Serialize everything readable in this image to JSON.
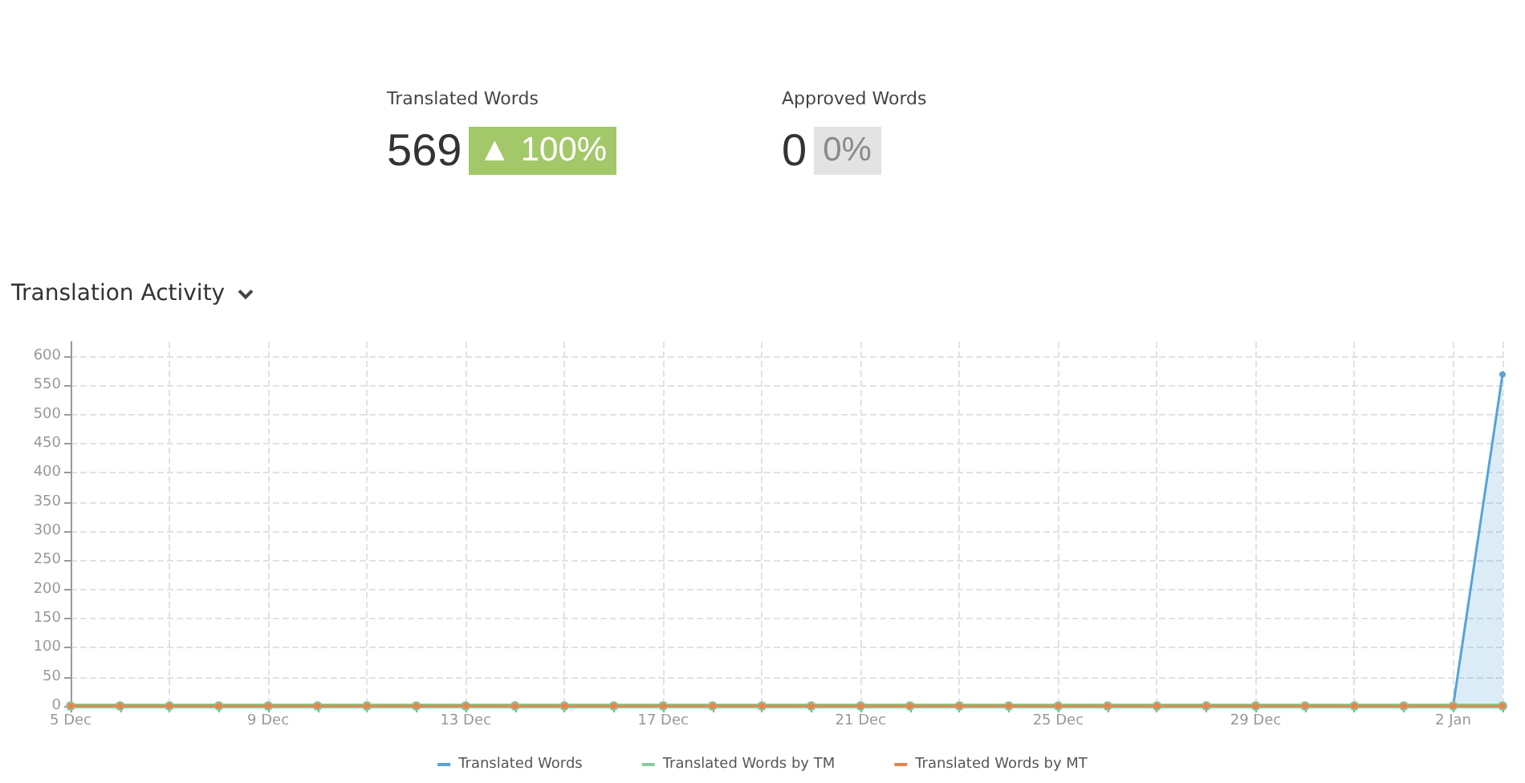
{
  "chart_data": [
    {
      "type": "other",
      "title": "Translated Words",
      "annotations": [
        "569",
        "▲ 100%"
      ],
      "color": "#a3c86a"
    },
    {
      "type": "other",
      "title": "Approved Words",
      "annotations": [
        "0",
        "0%"
      ],
      "color": "#e3e3e3"
    },
    {
      "type": "area",
      "title": "Translation Activity",
      "categories": [
        "5 Dec",
        null,
        null,
        null,
        "9 Dec",
        null,
        null,
        null,
        "13 Dec",
        null,
        null,
        null,
        "17 Dec",
        null,
        null,
        null,
        "21 Dec",
        null,
        null,
        null,
        "25 Dec",
        null,
        null,
        null,
        "29 Dec",
        null,
        null,
        null,
        "2 Jan",
        null
      ],
      "series": [
        {
          "name": "Translated Words",
          "color": "#55a3d9",
          "values": [
            0,
            0,
            0,
            0,
            0,
            0,
            0,
            0,
            0,
            0,
            0,
            0,
            0,
            0,
            0,
            0,
            0,
            0,
            0,
            0,
            0,
            0,
            0,
            0,
            0,
            0,
            0,
            0,
            0,
            569
          ]
        },
        {
          "name": "Translated Words by TM",
          "type": "line",
          "color": "#86cc9e",
          "values": [
            0,
            0,
            0,
            0,
            0,
            0,
            0,
            0,
            0,
            0,
            0,
            0,
            0,
            0,
            0,
            0,
            0,
            0,
            0,
            0,
            0,
            0,
            0,
            0,
            0,
            0,
            0,
            0,
            0,
            0
          ]
        },
        {
          "name": "Translated Words by MT",
          "type": "line",
          "color": "#e8844e",
          "values": [
            0,
            0,
            0,
            0,
            0,
            0,
            0,
            0,
            0,
            0,
            0,
            0,
            0,
            0,
            0,
            0,
            0,
            0,
            0,
            0,
            0,
            0,
            0,
            0,
            0,
            0,
            0,
            0,
            0,
            0
          ]
        }
      ],
      "ylim": [
        0,
        625
      ],
      "yticks": [
        0,
        50,
        100,
        150,
        200,
        250,
        300,
        350,
        400,
        450,
        500,
        550,
        600
      ],
      "grid": true,
      "legend": "bottom",
      "marker": "circle",
      "line_style": "solid"
    }
  ]
}
